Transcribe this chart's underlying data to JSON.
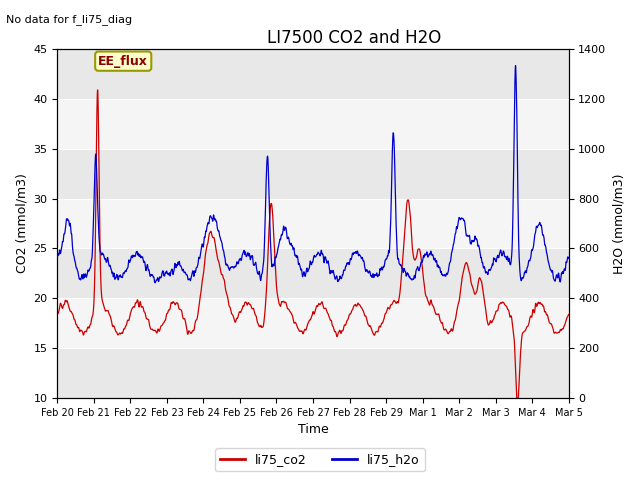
{
  "title": "LI7500 CO2 and H2O",
  "top_left_text": "No data for f_li75_diag",
  "annotation_box_text": "EE_flux",
  "xlabel": "Time",
  "ylabel_left": "CO2 (mmol/m3)",
  "ylabel_right": "H2O (mmol/m3)",
  "ylim_left": [
    10,
    45
  ],
  "ylim_right": [
    0,
    1400
  ],
  "yticks_left": [
    10,
    15,
    20,
    25,
    30,
    35,
    40,
    45
  ],
  "yticks_right": [
    0,
    200,
    400,
    600,
    800,
    1000,
    1200,
    1400
  ],
  "color_co2": "#cc0000",
  "color_h2o": "#0000cc",
  "legend_labels": [
    "li75_co2",
    "li75_h2o"
  ],
  "bg_gray": "#e8e8e8",
  "bg_white": "#ffffff",
  "x_tick_labels": [
    "Feb 20",
    "Feb 21",
    "Feb 22",
    "Feb 23",
    "Feb 24",
    "Feb 25",
    "Feb 26",
    "Feb 27",
    "Feb 28",
    "Feb 29",
    "Mar 1",
    "Mar 2",
    "Mar 3",
    "Mar 4",
    "Mar 5"
  ],
  "n_points": 3000,
  "title_fontsize": 12,
  "axis_label_fontsize": 9,
  "tick_fontsize": 8
}
